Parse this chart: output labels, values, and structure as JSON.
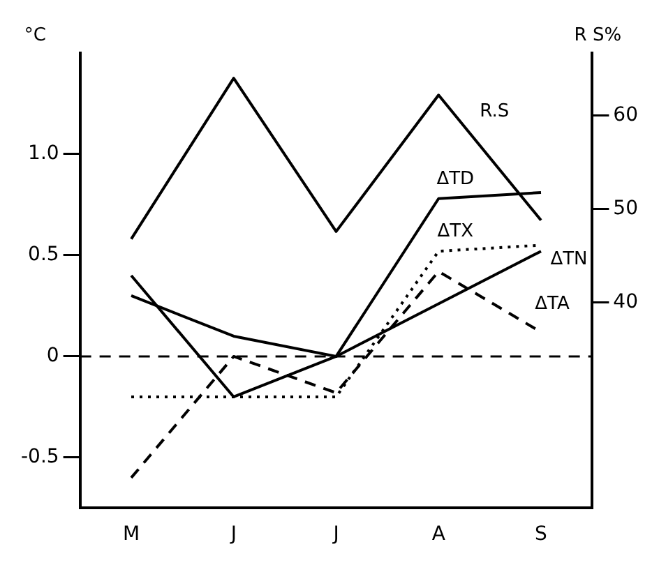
{
  "chart_data": {
    "type": "line",
    "ylabel": "°C",
    "y2label": "R S%",
    "categories": [
      "M",
      "J",
      "J",
      "A",
      "S"
    ],
    "series": [
      {
        "name": "R.S",
        "color": "#000000",
        "axis": "y2",
        "line_style": "solid",
        "values": [
          46.8,
          64,
          47.6,
          62.2,
          48.8
        ]
      },
      {
        "name": "ΔTD",
        "color": "#000000",
        "line_style": "solid",
        "values": [
          0.3,
          0.1,
          0.0,
          0.78,
          0.81
        ]
      },
      {
        "name": "ΔTX",
        "color": "#000000",
        "line_style": "dotted",
        "values": [
          -0.2,
          -0.2,
          -0.2,
          0.52,
          0.55
        ]
      },
      {
        "name": "ΔTN",
        "color": "#000000",
        "line_style": "solid",
        "values": [
          0.4,
          -0.2,
          0.0,
          0.26,
          0.52
        ]
      },
      {
        "name": "ΔTA",
        "color": "#000000",
        "line_style": "dashed",
        "values": [
          -0.6,
          0.0,
          -0.18,
          0.42,
          0.12
        ]
      }
    ],
    "ylim": [
      -0.75,
      1.5
    ],
    "yticks": [
      {
        "value": -0.5,
        "label": "-0.5"
      },
      0,
      {
        "value": 0.5,
        "label": "0.5"
      },
      {
        "value": 1.0,
        "label": "1.0"
      }
    ],
    "y2lim": [
      18,
      66.7
    ],
    "y2ticks": [
      40,
      50,
      60
    ],
    "ref_lines": [
      {
        "axis": "y",
        "value": 0,
        "line_style": "dashed"
      }
    ],
    "grid": false,
    "legend": false,
    "marker": "none"
  }
}
